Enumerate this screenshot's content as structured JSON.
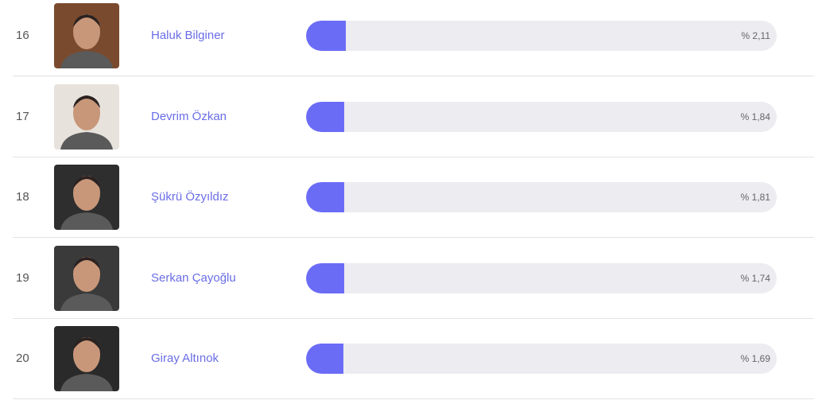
{
  "rows": [
    {
      "rank": 16,
      "name": "Haluk Bilginer",
      "share": {
        "value": 2.11,
        "label": "% 2,11"
      }
    },
    {
      "rank": 17,
      "name": "Devrim Özkan",
      "share": {
        "value": 1.84,
        "label": "% 1,84"
      }
    },
    {
      "rank": 18,
      "name": "Şükrü Özyıldız",
      "share": {
        "value": 1.81,
        "label": "% 1,81"
      }
    },
    {
      "rank": 19,
      "name": "Serkan Çayoğlu",
      "share": {
        "value": 1.74,
        "label": "% 1,74"
      }
    },
    {
      "rank": 20,
      "name": "Giray Altınok",
      "share": {
        "value": 1.69,
        "label": "% 1,69"
      }
    }
  ]
}
